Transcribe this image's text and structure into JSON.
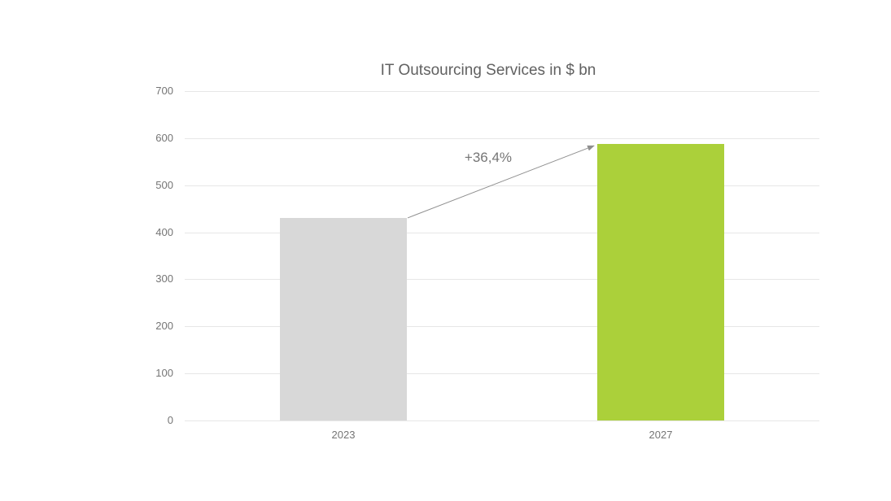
{
  "page": {
    "background": "#ffffff"
  },
  "colors": {
    "title": "#616161",
    "axis_label": "#757575",
    "gridline": "#e7e7e7",
    "arrow": "#8f8f8f",
    "annotation_text": "#757575",
    "bar_2023": "#d8d8d8",
    "bar_2027": "#abd03a"
  },
  "chart_data": {
    "type": "bar",
    "title": "IT Outsourcing Services in $ bn",
    "categories": [
      "2023",
      "2027"
    ],
    "values": [
      430.5,
      587.3
    ],
    "bar_colors": [
      "#d8d8d8",
      "#abd03a"
    ],
    "xlabel": "",
    "ylabel": "",
    "ylim": [
      0,
      700
    ],
    "yticks": [
      0,
      100,
      200,
      300,
      400,
      500,
      600,
      700
    ],
    "grid": true,
    "legend": "none",
    "annotation": {
      "text": "+36,4%",
      "from_category": "2023",
      "to_category": "2027",
      "arrow": true
    }
  }
}
